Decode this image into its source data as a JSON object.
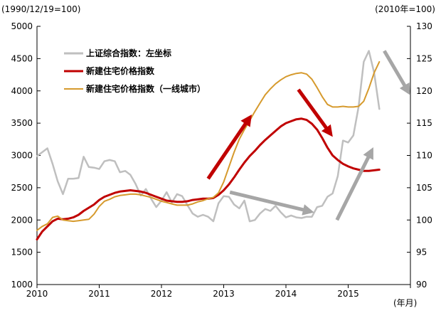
{
  "chart_data": {
    "type": "line",
    "left_axis_title": "(1990/12/19=100)",
    "right_axis_title": "(2010年=100)",
    "x_axis_unit": "(年月)",
    "x_ticks": [
      "2010",
      "2011",
      "2012",
      "2013",
      "2014",
      "2015"
    ],
    "y_left_ticks": [
      "5000",
      "4500",
      "4000",
      "3500",
      "3000",
      "2500",
      "2000",
      "1500",
      "1000"
    ],
    "y_right_ticks": [
      "130",
      "125",
      "120",
      "115",
      "110",
      "105",
      "100",
      "95",
      "90"
    ],
    "x_range": [
      2010,
      2016
    ],
    "ylim_left": [
      1000,
      5000
    ],
    "ylim_right": [
      90,
      130
    ],
    "series": [
      {
        "name": "上证综合指数：左坐标",
        "axis": "left",
        "color": "#bfbfbf",
        "width": 2.5,
        "x": [
          2010.0,
          2010.083,
          2010.167,
          2010.25,
          2010.333,
          2010.417,
          2010.5,
          2010.583,
          2010.667,
          2010.75,
          2010.833,
          2010.917,
          2011.0,
          2011.083,
          2011.167,
          2011.25,
          2011.333,
          2011.417,
          2011.5,
          2011.583,
          2011.667,
          2011.75,
          2011.833,
          2011.917,
          2012.0,
          2012.083,
          2012.167,
          2012.25,
          2012.333,
          2012.417,
          2012.5,
          2012.583,
          2012.667,
          2012.75,
          2012.833,
          2012.917,
          2013.0,
          2013.083,
          2013.167,
          2013.25,
          2013.333,
          2013.417,
          2013.5,
          2013.583,
          2013.667,
          2013.75,
          2013.833,
          2013.917,
          2014.0,
          2014.083,
          2014.167,
          2014.25,
          2014.333,
          2014.417,
          2014.5,
          2014.583,
          2014.667,
          2014.75,
          2014.833,
          2014.917,
          2015.0,
          2015.083,
          2015.167,
          2015.25,
          2015.333,
          2015.417,
          2015.5
        ],
        "values": [
          2990,
          3050,
          3110,
          2870,
          2600,
          2400,
          2640,
          2640,
          2650,
          2980,
          2820,
          2810,
          2790,
          2910,
          2930,
          2910,
          2740,
          2760,
          2700,
          2560,
          2380,
          2480,
          2330,
          2200,
          2300,
          2430,
          2270,
          2400,
          2370,
          2230,
          2100,
          2050,
          2080,
          2050,
          1980,
          2260,
          2370,
          2360,
          2240,
          2180,
          2300,
          1980,
          2000,
          2100,
          2170,
          2140,
          2220,
          2120,
          2040,
          2070,
          2040,
          2030,
          2050,
          2050,
          2200,
          2220,
          2360,
          2410,
          2680,
          3230,
          3200,
          3310,
          3750,
          4450,
          4620,
          4280,
          3720
        ]
      },
      {
        "name": "新建住宅价格指数",
        "axis": "right",
        "color": "#c00000",
        "width": 3,
        "x": [
          2010.0,
          2010.083,
          2010.167,
          2010.25,
          2010.333,
          2010.417,
          2010.5,
          2010.583,
          2010.667,
          2010.75,
          2010.833,
          2010.917,
          2011.0,
          2011.083,
          2011.167,
          2011.25,
          2011.333,
          2011.417,
          2011.5,
          2011.583,
          2011.667,
          2011.75,
          2011.833,
          2011.917,
          2012.0,
          2012.083,
          2012.167,
          2012.25,
          2012.333,
          2012.417,
          2012.5,
          2012.583,
          2012.667,
          2012.75,
          2012.833,
          2012.917,
          2013.0,
          2013.083,
          2013.167,
          2013.25,
          2013.333,
          2013.417,
          2013.5,
          2013.583,
          2013.667,
          2013.75,
          2013.833,
          2013.917,
          2014.0,
          2014.083,
          2014.167,
          2014.25,
          2014.333,
          2014.417,
          2014.5,
          2014.583,
          2014.667,
          2014.75,
          2014.833,
          2014.917,
          2015.0,
          2015.083,
          2015.167,
          2015.25,
          2015.333,
          2015.417,
          2015.5
        ],
        "values": [
          97.0,
          98.2,
          99.0,
          99.8,
          100.2,
          100.1,
          100.2,
          100.4,
          100.8,
          101.4,
          101.9,
          102.4,
          103.1,
          103.6,
          103.9,
          104.2,
          104.4,
          104.5,
          104.6,
          104.5,
          104.4,
          104.2,
          103.9,
          103.6,
          103.3,
          103.0,
          102.9,
          102.8,
          102.8,
          102.9,
          103.1,
          103.2,
          103.3,
          103.3,
          103.4,
          103.9,
          104.6,
          105.5,
          106.6,
          107.8,
          108.9,
          109.9,
          110.7,
          111.6,
          112.4,
          113.1,
          113.8,
          114.5,
          115.0,
          115.3,
          115.6,
          115.7,
          115.5,
          114.9,
          114.0,
          112.7,
          111.2,
          110.0,
          109.3,
          108.7,
          108.3,
          108.0,
          107.8,
          107.6,
          107.6,
          107.7,
          107.8
        ]
      },
      {
        "name": "新建住宅价格指数（一线城市）",
        "axis": "right",
        "color": "#d69a2d",
        "width": 2,
        "x": [
          2010.0,
          2010.083,
          2010.167,
          2010.25,
          2010.333,
          2010.417,
          2010.5,
          2010.583,
          2010.667,
          2010.75,
          2010.833,
          2010.917,
          2011.0,
          2011.083,
          2011.167,
          2011.25,
          2011.333,
          2011.417,
          2011.5,
          2011.583,
          2011.667,
          2011.75,
          2011.833,
          2011.917,
          2012.0,
          2012.083,
          2012.167,
          2012.25,
          2012.333,
          2012.417,
          2012.5,
          2012.583,
          2012.667,
          2012.75,
          2012.833,
          2012.917,
          2013.0,
          2013.083,
          2013.167,
          2013.25,
          2013.333,
          2013.417,
          2013.5,
          2013.583,
          2013.667,
          2013.75,
          2013.833,
          2013.917,
          2014.0,
          2014.083,
          2014.167,
          2014.25,
          2014.333,
          2014.417,
          2014.5,
          2014.583,
          2014.667,
          2014.75,
          2014.833,
          2014.917,
          2015.0,
          2015.083,
          2015.167,
          2015.25,
          2015.333,
          2015.417,
          2015.5
        ],
        "values": [
          98.4,
          99.0,
          99.4,
          100.4,
          100.6,
          100.0,
          99.9,
          99.8,
          99.9,
          100.0,
          100.1,
          100.9,
          102.1,
          102.9,
          103.2,
          103.6,
          103.8,
          103.9,
          104.0,
          104.0,
          103.9,
          103.7,
          103.5,
          103.2,
          102.9,
          102.7,
          102.5,
          102.3,
          102.3,
          102.3,
          102.5,
          102.8,
          103.0,
          103.3,
          103.5,
          104.2,
          105.9,
          108.2,
          110.5,
          112.5,
          114.0,
          115.4,
          116.8,
          118.1,
          119.4,
          120.3,
          121.1,
          121.7,
          122.2,
          122.5,
          122.7,
          122.8,
          122.6,
          121.8,
          120.5,
          119.1,
          117.9,
          117.5,
          117.5,
          117.6,
          117.5,
          117.5,
          117.6,
          118.4,
          120.4,
          122.8,
          124.5
        ]
      }
    ],
    "annotations": [
      {
        "type": "arrow",
        "color": "#c00000",
        "from": [
          2012.75,
          106.4
        ],
        "to": [
          2013.42,
          115.9
        ]
      },
      {
        "type": "arrow",
        "color": "#c00000",
        "from": [
          2014.2,
          120.2
        ],
        "to": [
          2014.72,
          113.3
        ]
      },
      {
        "type": "arrow",
        "color": "#a6a6a6",
        "from": [
          2013.1,
          104.3
        ],
        "to": [
          2014.4,
          101.3
        ]
      },
      {
        "type": "arrow",
        "color": "#a6a6a6",
        "from": [
          2014.82,
          100.0
        ],
        "to": [
          2015.38,
          110.8
        ]
      },
      {
        "type": "arrow",
        "color": "#a6a6a6",
        "from": [
          2015.58,
          126.2
        ],
        "to": [
          2015.97,
          119.8
        ]
      }
    ]
  }
}
